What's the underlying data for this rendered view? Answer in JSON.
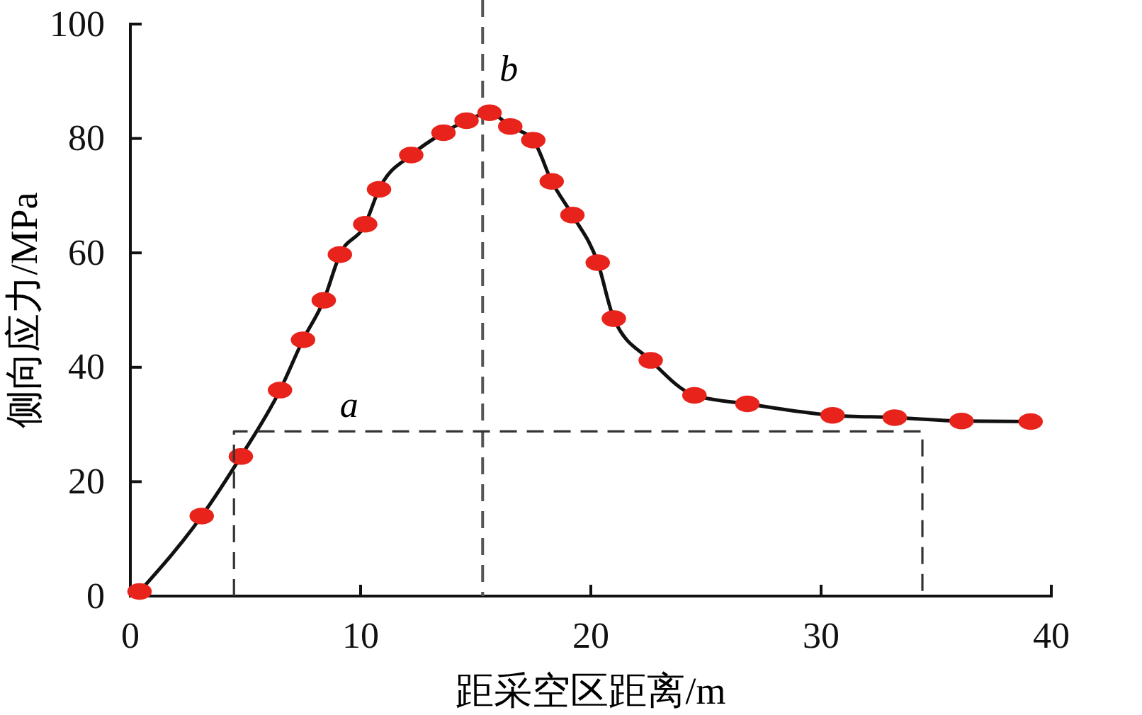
{
  "chart_data": {
    "type": "line",
    "xlabel": "距采空区距离/m",
    "ylabel": "侧向应力/MPa",
    "xlim": [
      0,
      40
    ],
    "ylim": [
      0,
      100
    ],
    "xticks": [
      0,
      10,
      20,
      30,
      40
    ],
    "yticks": [
      0,
      20,
      40,
      60,
      80,
      100
    ],
    "grid": false,
    "series": [
      {
        "color": "#e8231c",
        "marker": "circle",
        "line_style": "solid",
        "x": [
          0.4,
          3.1,
          4.8,
          6.5,
          7.5,
          8.4,
          9.1,
          10.2,
          10.8,
          12.2,
          13.6,
          14.6,
          15.6,
          16.5,
          17.5,
          18.3,
          19.2,
          20.3,
          21,
          22.6,
          24.5,
          26.8,
          30.5,
          33.2,
          36.1,
          39.1
        ],
        "values": [
          0.8,
          14,
          24.4,
          36,
          44.8,
          51.7,
          59.7,
          65,
          71.1,
          77.1,
          81,
          83.1,
          84.5,
          82.1,
          79.7,
          72.5,
          66.6,
          58.3,
          48.5,
          41.2,
          35.1,
          33.6,
          31.6,
          31.2,
          30.6,
          30.5
        ]
      },
      {
        "color": "#333333",
        "marker": "none",
        "line_style": "dashed",
        "x": [
          4.5,
          4.5,
          34.4,
          34.4
        ],
        "values": [
          0,
          28.8,
          28.8,
          0
        ]
      }
    ],
    "ref_lines": [
      {
        "axis": "x",
        "value": 15.3,
        "label": "b",
        "color": "#555555",
        "line_style": "dashed"
      }
    ],
    "annotations": [
      {
        "text": "a",
        "x": 9.5,
        "y": 28.8
      }
    ]
  }
}
